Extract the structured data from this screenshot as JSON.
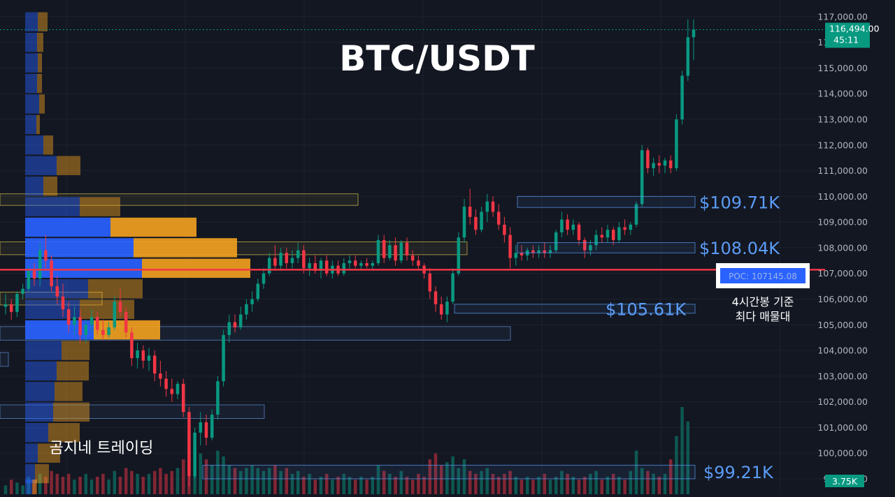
{
  "chart_data": {
    "type": "candlestick",
    "title": "BTC/USDT",
    "watermark": "곰지네 트레이딩",
    "y_axis": {
      "ylim": [
        98400,
        117650
      ],
      "ticks": [
        99000,
        100000,
        101000,
        102000,
        103000,
        104000,
        105000,
        106000,
        107000,
        108000,
        109000,
        110000,
        111000,
        112000,
        113000,
        114000,
        115000,
        116000,
        117000
      ],
      "tick_labels": [
        "99,000.00",
        "100,000.00",
        "101,000.00",
        "102,000.00",
        "103,000.00",
        "104,000.00",
        "105,000.00",
        "106,000.00",
        "107,000.00",
        "108,000.00",
        "109,000.00",
        "110,000.00",
        "111,000.00",
        "112,000.00",
        "113,000.00",
        "114,000.00",
        "115,000.00",
        "116,000.00",
        "117,000.00"
      ],
      "position": "right"
    },
    "grid": true,
    "last_price": {
      "price": 116494,
      "label": "116,494.00",
      "countdown": "45:11",
      "color": "#089981"
    },
    "volume_label": "3.75K",
    "poc": {
      "price": 107145.08,
      "label": "POC: 107145.08",
      "note_line1": "4시간봉 기준",
      "note_line2": "최다 매물대",
      "color": "#f23645"
    },
    "levels": [
      {
        "label": "$109.71K",
        "low": 109570,
        "high": 110000,
        "x_start": 740,
        "x_end": 994,
        "color": "#5b9cf6"
      },
      {
        "label": "$108.04K",
        "low": 107800,
        "high": 108200,
        "x_start": 740,
        "x_end": 994,
        "color": "#5b9cf6"
      },
      {
        "label": "$105.61K",
        "low": 105450,
        "high": 105800,
        "x_start": 650,
        "x_end": 994,
        "color": "#5b9cf6"
      },
      {
        "label": "$99.21K",
        "low": 99000,
        "high": 99530,
        "x_start": 290,
        "x_end": 994,
        "color": "#5b9cf6"
      }
    ],
    "profile_zones": [
      {
        "low": 109650,
        "high": 110100,
        "x_end": 512,
        "color": "#c9b84a"
      },
      {
        "low": 107730,
        "high": 108230,
        "x_end": 668,
        "color": "#c9b84a"
      },
      {
        "low": 105770,
        "high": 106270,
        "x_end": 146,
        "color": "#c9b84a"
      },
      {
        "low": 104400,
        "high": 104930,
        "x_end": 730,
        "color": "#5b87c9"
      },
      {
        "low": 103380,
        "high": 103920,
        "x_end": 12,
        "color": "#5b87c9"
      },
      {
        "low": 101350,
        "high": 101880,
        "x_end": 378,
        "color": "#5b87c9"
      }
    ],
    "volume_profile": [
      {
        "price": 116800,
        "buy": 18,
        "sell": 14
      },
      {
        "price": 116000,
        "buy": 17,
        "sell": 9
      },
      {
        "price": 115200,
        "buy": 18,
        "sell": 6
      },
      {
        "price": 114400,
        "buy": 17,
        "sell": 7
      },
      {
        "price": 113600,
        "buy": 20,
        "sell": 8
      },
      {
        "price": 112800,
        "buy": 16,
        "sell": 5
      },
      {
        "price": 112000,
        "buy": 26,
        "sell": 14
      },
      {
        "price": 111200,
        "buy": 45,
        "sell": 34
      },
      {
        "price": 110400,
        "buy": 26,
        "sell": 20
      },
      {
        "price": 109600,
        "buy": 78,
        "sell": 58
      },
      {
        "price": 108800,
        "buy": 122,
        "sell": 123
      },
      {
        "price": 108000,
        "buy": 155,
        "sell": 148
      },
      {
        "price": 107200,
        "buy": 167,
        "sell": 155
      },
      {
        "price": 106400,
        "buy": 90,
        "sell": 78
      },
      {
        "price": 105600,
        "buy": 78,
        "sell": 78
      },
      {
        "price": 104800,
        "buy": 98,
        "sell": 95
      },
      {
        "price": 104000,
        "buy": 52,
        "sell": 40
      },
      {
        "price": 103200,
        "buy": 45,
        "sell": 46
      },
      {
        "price": 102400,
        "buy": 42,
        "sell": 40
      },
      {
        "price": 101600,
        "buy": 40,
        "sell": 52
      },
      {
        "price": 100800,
        "buy": 33,
        "sell": 45
      },
      {
        "price": 100000,
        "buy": 18,
        "sell": 32
      },
      {
        "price": 99200,
        "buy": 14,
        "sell": 20
      },
      {
        "price": 98600,
        "buy": 10,
        "sell": 7
      }
    ],
    "candles": [
      [
        105700,
        106200,
        105400,
        105800
      ],
      [
        105800,
        106000,
        105200,
        105500
      ],
      [
        105500,
        106300,
        105300,
        106200
      ],
      [
        106200,
        106600,
        106000,
        106400
      ],
      [
        106400,
        107300,
        106300,
        107100
      ],
      [
        107100,
        107400,
        106500,
        106800
      ],
      [
        106800,
        108200,
        106500,
        107900
      ],
      [
        107900,
        108500,
        107200,
        107500
      ],
      [
        107500,
        107700,
        106300,
        106500
      ],
      [
        106500,
        106900,
        105800,
        106100
      ],
      [
        106100,
        106600,
        105300,
        105600
      ],
      [
        105600,
        105900,
        104700,
        105000
      ],
      [
        105000,
        105700,
        104600,
        105300
      ],
      [
        105300,
        105600,
        104300,
        104600
      ],
      [
        104600,
        105200,
        104300,
        105000
      ],
      [
        105000,
        105600,
        104700,
        105300
      ],
      [
        105300,
        105500,
        104600,
        104800
      ],
      [
        104800,
        105200,
        104400,
        104600
      ],
      [
        104600,
        105100,
        104500,
        104900
      ],
      [
        104900,
        106100,
        104800,
        105900
      ],
      [
        105900,
        106400,
        105300,
        105500
      ],
      [
        105500,
        105700,
        104500,
        104700
      ],
      [
        104700,
        104900,
        103400,
        103700
      ],
      [
        103700,
        104300,
        103300,
        104000
      ],
      [
        104000,
        104200,
        103300,
        103600
      ],
      [
        103600,
        104100,
        103200,
        103800
      ],
      [
        103800,
        104000,
        102800,
        103100
      ],
      [
        103100,
        103600,
        102600,
        102900
      ],
      [
        102900,
        103200,
        102200,
        102500
      ],
      [
        102500,
        102900,
        102000,
        102300
      ],
      [
        102300,
        102800,
        102100,
        102700
      ],
      [
        102700,
        102900,
        101400,
        101600
      ],
      [
        101600,
        101800,
        98700,
        99100
      ],
      [
        99100,
        101000,
        99000,
        100800
      ],
      [
        100800,
        101600,
        100300,
        101200
      ],
      [
        101200,
        101500,
        100300,
        100600
      ],
      [
        100600,
        101700,
        100500,
        101500
      ],
      [
        101500,
        103000,
        101300,
        102800
      ],
      [
        102800,
        104800,
        102600,
        104600
      ],
      [
        104600,
        105400,
        104300,
        105100
      ],
      [
        105100,
        105400,
        104700,
        104900
      ],
      [
        104900,
        105700,
        104800,
        105400
      ],
      [
        105400,
        106000,
        105200,
        105800
      ],
      [
        105800,
        106300,
        105500,
        106000
      ],
      [
        106000,
        106800,
        105900,
        106600
      ],
      [
        106600,
        107200,
        106400,
        107000
      ],
      [
        107000,
        107800,
        106900,
        107600
      ],
      [
        107600,
        108100,
        107100,
        107300
      ],
      [
        107300,
        108000,
        107100,
        107800
      ],
      [
        107800,
        108000,
        107200,
        107400
      ],
      [
        107400,
        107900,
        107200,
        107600
      ],
      [
        107600,
        108200,
        107400,
        107900
      ],
      [
        107900,
        108100,
        107000,
        107200
      ],
      [
        107200,
        107600,
        106900,
        107400
      ],
      [
        107400,
        107700,
        107000,
        107100
      ],
      [
        107100,
        107600,
        106800,
        107500
      ],
      [
        107500,
        107700,
        106900,
        107000
      ],
      [
        107000,
        107500,
        106800,
        107300
      ],
      [
        107300,
        107500,
        106900,
        107000
      ],
      [
        107000,
        107600,
        106900,
        107400
      ],
      [
        107400,
        107700,
        107200,
        107500
      ],
      [
        107500,
        107700,
        107200,
        107300
      ],
      [
        107300,
        107500,
        107100,
        107400
      ],
      [
        107400,
        107600,
        107200,
        107300
      ],
      [
        107300,
        107500,
        107100,
        107400
      ],
      [
        107400,
        108500,
        107300,
        108300
      ],
      [
        108300,
        108500,
        107400,
        107600
      ],
      [
        107600,
        108300,
        107500,
        108100
      ],
      [
        108100,
        108400,
        107300,
        107500
      ],
      [
        107500,
        108300,
        107400,
        108200
      ],
      [
        108200,
        108400,
        107500,
        107700
      ],
      [
        107700,
        107900,
        107300,
        107500
      ],
      [
        107500,
        107700,
        107100,
        107300
      ],
      [
        107300,
        107400,
        106800,
        107000
      ],
      [
        107000,
        107200,
        106000,
        106300
      ],
      [
        106300,
        106500,
        105500,
        105800
      ],
      [
        105800,
        106100,
        105200,
        105400
      ],
      [
        105400,
        106100,
        105100,
        105900
      ],
      [
        105900,
        107200,
        105800,
        107000
      ],
      [
        107000,
        108600,
        106900,
        108400
      ],
      [
        108400,
        109900,
        108200,
        109600
      ],
      [
        109600,
        110300,
        108900,
        109200
      ],
      [
        109200,
        109500,
        108500,
        108700
      ],
      [
        108700,
        109600,
        108600,
        109400
      ],
      [
        109400,
        110100,
        109000,
        109800
      ],
      [
        109800,
        110000,
        109200,
        109400
      ],
      [
        109400,
        109700,
        108700,
        108900
      ],
      [
        108900,
        109200,
        108200,
        108500
      ],
      [
        108500,
        108800,
        107200,
        107600
      ],
      [
        107600,
        108100,
        107300,
        107800
      ],
      [
        107800,
        108100,
        107500,
        107700
      ],
      [
        107700,
        108000,
        107500,
        107900
      ],
      [
        107900,
        108100,
        107600,
        107800
      ],
      [
        107800,
        108100,
        107600,
        107900
      ],
      [
        107900,
        108200,
        107600,
        107800
      ],
      [
        107800,
        108100,
        107600,
        107900
      ],
      [
        107900,
        108700,
        107800,
        108600
      ],
      [
        108600,
        109400,
        108400,
        109100
      ],
      [
        109100,
        109300,
        108500,
        108700
      ],
      [
        108700,
        109100,
        108500,
        108900
      ],
      [
        108900,
        109000,
        108100,
        108300
      ],
      [
        108300,
        108400,
        107600,
        107900
      ],
      [
        107900,
        108300,
        107700,
        108100
      ],
      [
        108100,
        108700,
        107900,
        108500
      ],
      [
        108500,
        108800,
        108200,
        108400
      ],
      [
        108400,
        108900,
        108200,
        108700
      ],
      [
        108700,
        108800,
        108100,
        108300
      ],
      [
        108300,
        109000,
        108200,
        108800
      ],
      [
        108800,
        109100,
        108500,
        108700
      ],
      [
        108700,
        109000,
        108500,
        108900
      ],
      [
        108900,
        109800,
        108800,
        109700
      ],
      [
        109700,
        112000,
        109600,
        111800
      ],
      [
        111800,
        111900,
        110900,
        111100
      ],
      [
        111100,
        111500,
        110800,
        111300
      ],
      [
        111300,
        111600,
        110900,
        111200
      ],
      [
        111200,
        111500,
        110900,
        111400
      ],
      [
        111400,
        111600,
        110900,
        111100
      ],
      [
        111100,
        113200,
        111000,
        113000
      ],
      [
        113000,
        114900,
        112800,
        114700
      ],
      [
        114700,
        116900,
        114500,
        116200
      ],
      [
        116200,
        116900,
        115300,
        116494
      ]
    ],
    "volumes": [
      3,
      5,
      4,
      3,
      6,
      5,
      7,
      6,
      8,
      7,
      6,
      7,
      5,
      6,
      7,
      5,
      6,
      7,
      5,
      8,
      6,
      9,
      8,
      7,
      6,
      7,
      8,
      9,
      7,
      8,
      9,
      12,
      22,
      18,
      14,
      12,
      10,
      15,
      13,
      10,
      9,
      8,
      9,
      10,
      9,
      8,
      9,
      10,
      8,
      9,
      7,
      8,
      6,
      7,
      5,
      6,
      7,
      5,
      6,
      7,
      6,
      5,
      6,
      5,
      6,
      10,
      8,
      7,
      6,
      8,
      6,
      5,
      7,
      6,
      12,
      14,
      10,
      11,
      13,
      9,
      12,
      8,
      7,
      8,
      9,
      7,
      6,
      7,
      8,
      6,
      5,
      6,
      5,
      6,
      7,
      5,
      6,
      8,
      7,
      6,
      5,
      6,
      7,
      8,
      5,
      6,
      7,
      6,
      5,
      8,
      15,
      9,
      8,
      7,
      6,
      7,
      12,
      20,
      30,
      25
    ]
  }
}
